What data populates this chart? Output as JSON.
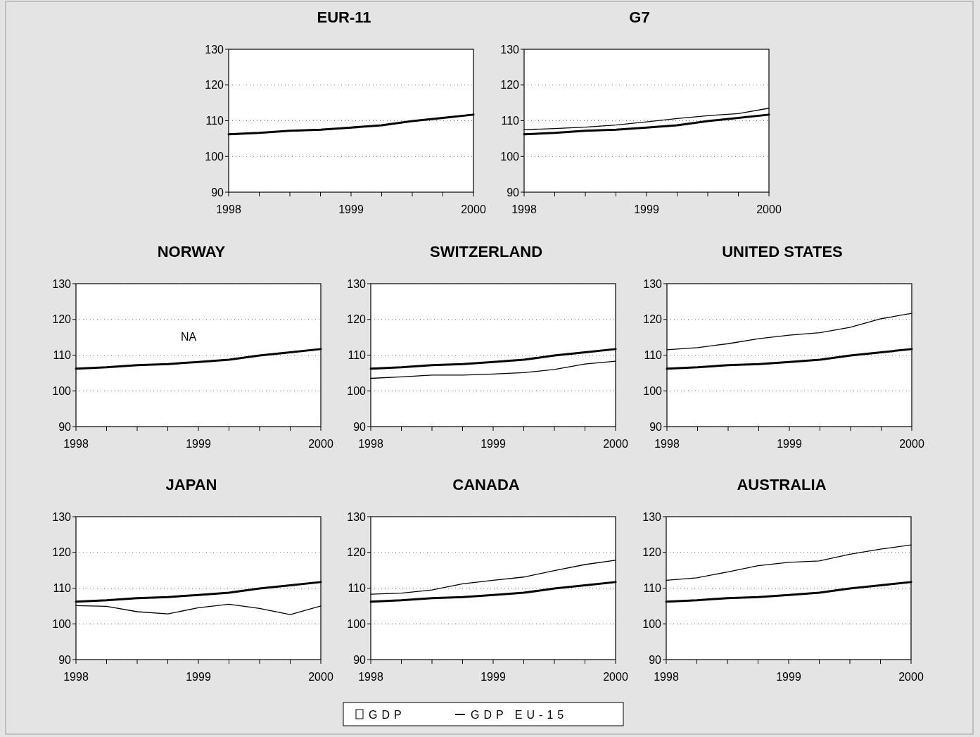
{
  "chart_data": [
    {
      "type": "line",
      "title": "EUR-11",
      "x": [
        1998,
        1998.25,
        1998.5,
        1998.75,
        1999,
        1999.25,
        1999.5,
        1999.75,
        2000
      ],
      "xlim": [
        1998,
        2000
      ],
      "xticks": [
        1998,
        {
          "value": 1998.25,
          "label": null
        },
        {
          "value": 1998.5,
          "label": null
        },
        {
          "value": 1998.75,
          "label": null
        },
        1999,
        {
          "value": 1999.25,
          "label": null
        },
        {
          "value": 1999.5,
          "label": null
        },
        {
          "value": 1999.75,
          "label": null
        },
        2000
      ],
      "ylim": [
        90,
        130
      ],
      "yticks": [
        90,
        100,
        110,
        120,
        130
      ],
      "grid": "y",
      "series": [
        {
          "color": "#000000",
          "values": [
            106.1,
            106.6,
            107.1,
            107.4,
            108.0,
            108.8,
            109.9,
            110.8,
            111.8
          ]
        },
        {
          "color": "#000000",
          "values": [
            106.2,
            106.6,
            107.2,
            107.5,
            108.1,
            108.7,
            109.9,
            110.8,
            111.7
          ]
        }
      ]
    },
    {
      "type": "line",
      "title": "G7",
      "x": [
        1998,
        1998.25,
        1998.5,
        1998.75,
        1999,
        1999.25,
        1999.5,
        1999.75,
        2000
      ],
      "xlim": [
        1998,
        2000
      ],
      "xticks": [
        1998,
        {
          "value": 1998.25,
          "label": null
        },
        {
          "value": 1998.5,
          "label": null
        },
        {
          "value": 1998.75,
          "label": null
        },
        1999,
        {
          "value": 1999.25,
          "label": null
        },
        {
          "value": 1999.5,
          "label": null
        },
        {
          "value": 1999.75,
          "label": null
        },
        2000
      ],
      "ylim": [
        90,
        130
      ],
      "yticks": [
        90,
        100,
        110,
        120,
        130
      ],
      "grid": "y",
      "series": [
        {
          "color": "#000000",
          "values": [
            107.5,
            107.8,
            108.2,
            108.8,
            109.7,
            110.6,
            111.4,
            112.0,
            113.5
          ]
        },
        {
          "color": "#000000",
          "values": [
            106.2,
            106.6,
            107.2,
            107.5,
            108.1,
            108.7,
            109.9,
            110.8,
            111.7
          ]
        }
      ]
    },
    {
      "type": "line",
      "title": "NORWAY",
      "annotations": [
        "NA"
      ],
      "x": [
        1998,
        1998.25,
        1998.5,
        1998.75,
        1999,
        1999.25,
        1999.5,
        1999.75,
        2000
      ],
      "xlim": [
        1998,
        2000
      ],
      "xticks": [
        1998,
        {
          "value": 1998.25,
          "label": null
        },
        {
          "value": 1998.5,
          "label": null
        },
        {
          "value": 1998.75,
          "label": null
        },
        1999,
        {
          "value": 1999.25,
          "label": null
        },
        {
          "value": 1999.5,
          "label": null
        },
        {
          "value": 1999.75,
          "label": null
        },
        2000
      ],
      "ylim": [
        90,
        130
      ],
      "yticks": [
        90,
        100,
        110,
        120,
        130
      ],
      "grid": "y",
      "series": [
        {
          "color": "#000000",
          "values": [
            106.2,
            106.6,
            107.2,
            107.5,
            108.1,
            108.7,
            109.9,
            110.8,
            111.7
          ]
        }
      ]
    },
    {
      "type": "line",
      "title": "SWITZERLAND",
      "x": [
        1998,
        1998.25,
        1998.5,
        1998.75,
        1999,
        1999.25,
        1999.5,
        1999.75,
        2000
      ],
      "xlim": [
        1998,
        2000
      ],
      "xticks": [
        1998,
        {
          "value": 1998.25,
          "label": null
        },
        {
          "value": 1998.5,
          "label": null
        },
        {
          "value": 1998.75,
          "label": null
        },
        1999,
        {
          "value": 1999.25,
          "label": null
        },
        {
          "value": 1999.5,
          "label": null
        },
        {
          "value": 1999.75,
          "label": null
        },
        2000
      ],
      "ylim": [
        90,
        130
      ],
      "yticks": [
        90,
        100,
        110,
        120,
        130
      ],
      "grid": "y",
      "series": [
        {
          "color": "#000000",
          "values": [
            103.5,
            103.9,
            104.4,
            104.4,
            104.7,
            105.1,
            106.0,
            107.5,
            108.3
          ]
        },
        {
          "color": "#000000",
          "values": [
            106.2,
            106.6,
            107.2,
            107.5,
            108.1,
            108.7,
            109.9,
            110.8,
            111.7
          ]
        }
      ]
    },
    {
      "type": "line",
      "title": "UNITED STATES",
      "x": [
        1998,
        1998.25,
        1998.5,
        1998.75,
        1999,
        1999.25,
        1999.5,
        1999.75,
        2000
      ],
      "xlim": [
        1998,
        2000
      ],
      "xticks": [
        1998,
        {
          "value": 1998.25,
          "label": null
        },
        {
          "value": 1998.5,
          "label": null
        },
        {
          "value": 1998.75,
          "label": null
        },
        1999,
        {
          "value": 1999.25,
          "label": null
        },
        {
          "value": 1999.5,
          "label": null
        },
        {
          "value": 1999.75,
          "label": null
        },
        2000
      ],
      "ylim": [
        90,
        130
      ],
      "yticks": [
        90,
        100,
        110,
        120,
        130
      ],
      "grid": "y",
      "series": [
        {
          "color": "#000000",
          "values": [
            111.5,
            112.1,
            113.2,
            114.6,
            115.6,
            116.3,
            117.8,
            120.2,
            121.7
          ]
        },
        {
          "color": "#000000",
          "values": [
            106.2,
            106.6,
            107.2,
            107.5,
            108.1,
            108.7,
            109.9,
            110.8,
            111.7
          ]
        }
      ]
    },
    {
      "type": "line",
      "title": "JAPAN",
      "x": [
        1998,
        1998.25,
        1998.5,
        1998.75,
        1999,
        1999.25,
        1999.5,
        1999.75,
        2000
      ],
      "xlim": [
        1998,
        2000
      ],
      "xticks": [
        1998,
        {
          "value": 1998.25,
          "label": null
        },
        {
          "value": 1998.5,
          "label": null
        },
        {
          "value": 1998.75,
          "label": null
        },
        1999,
        {
          "value": 1999.25,
          "label": null
        },
        {
          "value": 1999.5,
          "label": null
        },
        {
          "value": 1999.75,
          "label": null
        },
        2000
      ],
      "ylim": [
        90,
        130
      ],
      "yticks": [
        90,
        100,
        110,
        120,
        130
      ],
      "grid": "y",
      "series": [
        {
          "color": "#000000",
          "values": [
            105.1,
            104.9,
            103.4,
            102.8,
            104.5,
            105.5,
            104.3,
            102.6,
            105.0
          ]
        },
        {
          "color": "#000000",
          "values": [
            106.2,
            106.6,
            107.2,
            107.5,
            108.1,
            108.7,
            109.9,
            110.8,
            111.7
          ]
        }
      ]
    },
    {
      "type": "line",
      "title": "CANADA",
      "x": [
        1998,
        1998.25,
        1998.5,
        1998.75,
        1999,
        1999.25,
        1999.5,
        1999.75,
        2000
      ],
      "xlim": [
        1998,
        2000
      ],
      "xticks": [
        1998,
        {
          "value": 1998.25,
          "label": null
        },
        {
          "value": 1998.5,
          "label": null
        },
        {
          "value": 1998.75,
          "label": null
        },
        1999,
        {
          "value": 1999.25,
          "label": null
        },
        {
          "value": 1999.5,
          "label": null
        },
        {
          "value": 1999.75,
          "label": null
        },
        2000
      ],
      "ylim": [
        90,
        130
      ],
      "yticks": [
        90,
        100,
        110,
        120,
        130
      ],
      "grid": "y",
      "series": [
        {
          "color": "#000000",
          "values": [
            108.3,
            108.6,
            109.5,
            111.2,
            112.2,
            113.1,
            114.9,
            116.6,
            117.8
          ]
        },
        {
          "color": "#000000",
          "values": [
            106.2,
            106.6,
            107.2,
            107.5,
            108.1,
            108.7,
            109.9,
            110.8,
            111.7
          ]
        }
      ]
    },
    {
      "type": "line",
      "title": "AUSTRALIA",
      "x": [
        1998,
        1998.25,
        1998.5,
        1998.75,
        1999,
        1999.25,
        1999.5,
        1999.75,
        2000
      ],
      "xlim": [
        1998,
        2000
      ],
      "xticks": [
        1998,
        {
          "value": 1998.25,
          "label": null
        },
        {
          "value": 1998.5,
          "label": null
        },
        {
          "value": 1998.75,
          "label": null
        },
        1999,
        {
          "value": 1999.25,
          "label": null
        },
        {
          "value": 1999.5,
          "label": null
        },
        {
          "value": 1999.75,
          "label": null
        },
        2000
      ],
      "ylim": [
        90,
        130
      ],
      "yticks": [
        90,
        100,
        110,
        120,
        130
      ],
      "grid": "y",
      "legend": "bottom",
      "series": [
        {
          "name": "GDP",
          "color": "#000000",
          "values": [
            112.2,
            112.9,
            114.5,
            116.3,
            117.2,
            117.6,
            119.5,
            120.9,
            122.1
          ]
        },
        {
          "name": "GDP EU-15",
          "color": "#000000",
          "values": [
            106.2,
            106.6,
            107.2,
            107.5,
            108.1,
            108.7,
            109.9,
            110.8,
            111.7
          ]
        }
      ]
    }
  ]
}
